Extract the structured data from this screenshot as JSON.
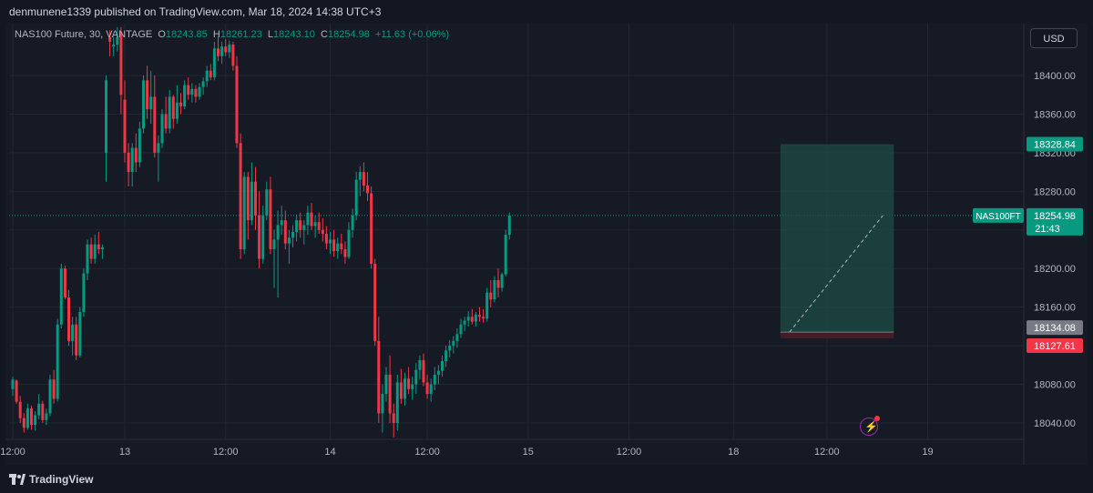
{
  "header": {
    "published_text": "denmunene1339 published on TradingView.com, Mar 18, 2024 14:38 UTC+3"
  },
  "legend": {
    "symbol": "NAS100 Future, 30, VANTAGE",
    "o_label": "O",
    "o_value": "18243.85",
    "h_label": "H",
    "h_value": "18261.23",
    "l_label": "L",
    "l_value": "18243.10",
    "c_label": "C",
    "c_value": "18254.98",
    "change": "+11.63 (+0.06%)"
  },
  "currency_button": "USD",
  "footer": {
    "brand": "TradingView"
  },
  "colors": {
    "up": "#089981",
    "down": "#f23645",
    "background": "#161a25",
    "grid": "#232632",
    "target_zone": "#1d4c46",
    "stop_zone": "#4a1f26"
  },
  "chart_data": {
    "type": "candlestick",
    "title": "NAS100 Future, 30, VANTAGE",
    "currency": "USD",
    "grid": true,
    "yaxis": {
      "ticks": [
        18040,
        18080,
        18120,
        18160,
        18200,
        18240,
        18280,
        18320,
        18360,
        18400
      ],
      "tick_labels": [
        "18040.00",
        "18080.00",
        "",
        "18160.00",
        "18200.00",
        "",
        "18280.00",
        "18320.00",
        "18360.00",
        "18400.00"
      ],
      "range": [
        18020,
        18450
      ]
    },
    "xaxis": {
      "tick_labels": [
        "12:00",
        "13",
        "12:00",
        "14",
        "12:00",
        "15",
        "12:00",
        "18",
        "12:00",
        "19"
      ],
      "tick_index": [
        0,
        30,
        57,
        85,
        111,
        138,
        165,
        193,
        218,
        245
      ]
    },
    "price_labels": [
      {
        "id": "target",
        "text": "18328.84",
        "value": 18328.84,
        "style": "up"
      },
      {
        "id": "symbol",
        "text": "NAS100FT",
        "value": 18254.98,
        "style": "up"
      },
      {
        "id": "last",
        "text": "18254.98",
        "sub": "21:43",
        "value": 18254.98,
        "style": "up"
      },
      {
        "id": "entry",
        "text": "18134.08",
        "value": 18134.08,
        "style": "neutral"
      },
      {
        "id": "stop",
        "text": "18127.61",
        "value": 18127.61,
        "style": "down"
      }
    ],
    "position": {
      "type": "long",
      "entry": 18134.08,
      "target": 18328.84,
      "stop": 18127.61,
      "from_index": 208,
      "to_index": 233
    },
    "candles": [
      [
        18075,
        18088,
        18068,
        18085
      ],
      [
        18084,
        18085,
        18060,
        18062
      ],
      [
        18062,
        18068,
        18040,
        18045
      ],
      [
        18045,
        18050,
        18030,
        18035
      ],
      [
        18035,
        18060,
        18033,
        18055
      ],
      [
        18055,
        18058,
        18033,
        18038
      ],
      [
        18038,
        18052,
        18032,
        18048
      ],
      [
        18048,
        18070,
        18044,
        18060
      ],
      [
        18060,
        18063,
        18040,
        18043
      ],
      [
        18043,
        18055,
        18038,
        18050
      ],
      [
        18050,
        18090,
        18047,
        18085
      ],
      [
        18085,
        18095,
        18060,
        18065
      ],
      [
        18065,
        18148,
        18062,
        18142
      ],
      [
        18142,
        18205,
        18138,
        18200
      ],
      [
        18200,
        18203,
        18168,
        18170
      ],
      [
        18170,
        18178,
        18120,
        18125
      ],
      [
        18125,
        18150,
        18110,
        18142
      ],
      [
        18142,
        18150,
        18105,
        18110
      ],
      [
        18110,
        18160,
        18108,
        18155
      ],
      [
        18155,
        18200,
        18150,
        18195
      ],
      [
        18195,
        18230,
        18188,
        18225
      ],
      [
        18225,
        18232,
        18205,
        18210
      ],
      [
        18210,
        18235,
        18205,
        18225
      ],
      [
        18225,
        18238,
        18215,
        18220
      ],
      [
        18220,
        18225,
        18210,
        18222
      ],
      [
        18320,
        18400,
        18290,
        18395
      ],
      [
        18440,
        18447,
        18420,
        18435
      ],
      [
        18430,
        18440,
        18420,
        18432
      ],
      [
        18432,
        18450,
        18425,
        18440
      ],
      [
        18445,
        18450,
        18360,
        18380
      ],
      [
        18375,
        18395,
        18310,
        18320
      ],
      [
        18320,
        18330,
        18285,
        18300
      ],
      [
        18300,
        18330,
        18285,
        18325
      ],
      [
        18325,
        18340,
        18300,
        18310
      ],
      [
        18310,
        18352,
        18305,
        18345
      ],
      [
        18345,
        18400,
        18340,
        18395
      ],
      [
        18395,
        18410,
        18355,
        18365
      ],
      [
        18365,
        18405,
        18350,
        18378
      ],
      [
        18378,
        18400,
        18315,
        18320
      ],
      [
        18320,
        18338,
        18290,
        18330
      ],
      [
        18330,
        18365,
        18325,
        18360
      ],
      [
        18360,
        18378,
        18340,
        18345
      ],
      [
        18345,
        18385,
        18340,
        18378
      ],
      [
        18378,
        18380,
        18345,
        18355
      ],
      [
        18355,
        18390,
        18350,
        18372
      ],
      [
        18372,
        18382,
        18360,
        18368
      ],
      [
        18368,
        18395,
        18365,
        18390
      ],
      [
        18390,
        18398,
        18375,
        18380
      ],
      [
        18380,
        18392,
        18372,
        18386
      ],
      [
        18386,
        18390,
        18372,
        18378
      ],
      [
        18378,
        18392,
        18375,
        18388
      ],
      [
        18388,
        18398,
        18380,
        18394
      ],
      [
        18394,
        18410,
        18388,
        18405
      ],
      [
        18405,
        18412,
        18395,
        18398
      ],
      [
        18398,
        18435,
        18395,
        18428
      ],
      [
        18428,
        18440,
        18415,
        18420
      ],
      [
        18420,
        18435,
        18412,
        18430
      ],
      [
        18430,
        18438,
        18420,
        18424
      ],
      [
        18424,
        18436,
        18418,
        18432
      ],
      [
        18432,
        18435,
        18405,
        18410
      ],
      [
        18410,
        18420,
        18325,
        18330
      ],
      [
        18330,
        18340,
        18210,
        18220
      ],
      [
        18220,
        18300,
        18215,
        18295
      ],
      [
        18295,
        18300,
        18230,
        18250
      ],
      [
        18250,
        18310,
        18245,
        18290
      ],
      [
        18290,
        18305,
        18240,
        18255
      ],
      [
        18255,
        18280,
        18200,
        18210
      ],
      [
        18210,
        18265,
        18205,
        18255
      ],
      [
        18255,
        18290,
        18250,
        18282
      ],
      [
        18282,
        18295,
        18215,
        18220
      ],
      [
        18220,
        18240,
        18180,
        18230
      ],
      [
        18230,
        18260,
        18170,
        18245
      ],
      [
        18245,
        18265,
        18235,
        18250
      ],
      [
        18250,
        18260,
        18220,
        18226
      ],
      [
        18226,
        18240,
        18205,
        18232
      ],
      [
        18232,
        18245,
        18222,
        18238
      ],
      [
        18238,
        18256,
        18228,
        18250
      ],
      [
        18250,
        18258,
        18232,
        18240
      ],
      [
        18240,
        18250,
        18225,
        18245
      ],
      [
        18245,
        18265,
        18235,
        18258
      ],
      [
        18258,
        18268,
        18240,
        18244
      ],
      [
        18244,
        18255,
        18232,
        18248
      ],
      [
        18248,
        18258,
        18236,
        18240
      ],
      [
        18240,
        18252,
        18228,
        18236
      ],
      [
        18236,
        18244,
        18220,
        18226
      ],
      [
        18226,
        18238,
        18215,
        18230
      ],
      [
        18230,
        18240,
        18212,
        18218
      ],
      [
        18218,
        18232,
        18210,
        18226
      ],
      [
        18226,
        18236,
        18215,
        18220
      ],
      [
        18220,
        18228,
        18205,
        18212
      ],
      [
        18212,
        18248,
        18210,
        18240
      ],
      [
        18240,
        18262,
        18232,
        18255
      ],
      [
        18255,
        18300,
        18250,
        18292
      ],
      [
        18292,
        18306,
        18275,
        18300
      ],
      [
        18300,
        18310,
        18280,
        18286
      ],
      [
        18286,
        18300,
        18270,
        18278
      ],
      [
        18278,
        18285,
        18200,
        18205
      ],
      [
        18205,
        18210,
        18120,
        18125
      ],
      [
        18125,
        18150,
        18040,
        18050
      ],
      [
        18050,
        18080,
        18030,
        18070
      ],
      [
        18070,
        18098,
        18062,
        18090
      ],
      [
        18090,
        18110,
        18040,
        18050
      ],
      [
        18050,
        18060,
        18025,
        18040
      ],
      [
        18040,
        18090,
        18032,
        18082
      ],
      [
        18082,
        18096,
        18060,
        18065
      ],
      [
        18065,
        18092,
        18058,
        18086
      ],
      [
        18086,
        18098,
        18070,
        18075
      ],
      [
        18075,
        18088,
        18064,
        18080
      ],
      [
        18080,
        18102,
        18070,
        18095
      ],
      [
        18095,
        18110,
        18085,
        18105
      ],
      [
        18105,
        18112,
        18078,
        18082
      ],
      [
        18082,
        18090,
        18065,
        18070
      ],
      [
        18070,
        18086,
        18062,
        18080
      ],
      [
        18080,
        18098,
        18074,
        18090
      ],
      [
        18090,
        18100,
        18080,
        18094
      ],
      [
        18094,
        18110,
        18088,
        18104
      ],
      [
        18104,
        18120,
        18098,
        18115
      ],
      [
        18115,
        18126,
        18108,
        18120
      ],
      [
        18120,
        18130,
        18112,
        18125
      ],
      [
        18125,
        18138,
        18118,
        18132
      ],
      [
        18132,
        18148,
        18128,
        18142
      ],
      [
        18142,
        18150,
        18135,
        18146
      ],
      [
        18146,
        18156,
        18140,
        18150
      ],
      [
        18150,
        18158,
        18142,
        18145
      ],
      [
        18145,
        18155,
        18140,
        18152
      ],
      [
        18152,
        18160,
        18145,
        18150
      ],
      [
        18150,
        18158,
        18144,
        18148
      ],
      [
        18148,
        18180,
        18145,
        18175
      ],
      [
        18175,
        18188,
        18160,
        18168
      ],
      [
        18168,
        18192,
        18165,
        18188
      ],
      [
        18188,
        18200,
        18170,
        18180
      ],
      [
        18180,
        18196,
        18176,
        18194
      ],
      [
        18194,
        18240,
        18192,
        18235
      ],
      [
        18235,
        18258,
        18230,
        18255
      ]
    ]
  }
}
